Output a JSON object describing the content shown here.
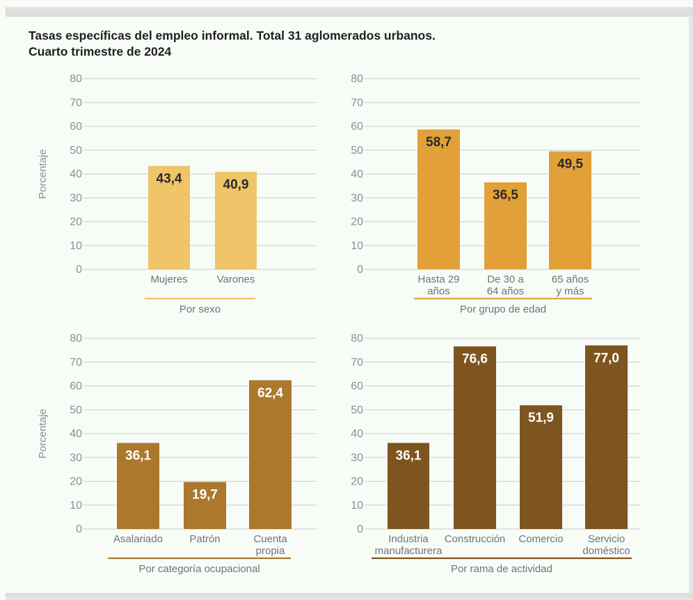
{
  "title_line1": "Tasas específicas del empleo informal. Total 31 aglomerados urbanos.",
  "title_line2": "Cuarto trimestre de 2024",
  "colors": {
    "sexo": "#f0c468",
    "edad": "#e2a138",
    "categoria": "#ab782c",
    "rama": "#7e5420",
    "grid": "#d4d6d4",
    "tick_text": "#8a8e96"
  },
  "chart_data": [
    {
      "type": "bar",
      "title": "Por sexo",
      "ylabel": "Porcentaje",
      "ylim": [
        0,
        80
      ],
      "yticks": [
        "0",
        "10",
        "20",
        "30",
        "40",
        "50",
        "60",
        "70",
        "80"
      ],
      "grid": true,
      "categories": [
        [
          "Mujeres"
        ],
        [
          "Varones"
        ]
      ],
      "values": [
        43.4,
        40.9
      ],
      "value_labels": [
        "43,4",
        "40,9"
      ],
      "value_label_color": "#2a2a2a"
    },
    {
      "type": "bar",
      "title": "Por grupo de edad",
      "ylabel": "",
      "ylim": [
        0,
        80
      ],
      "yticks": [
        "0",
        "10",
        "20",
        "30",
        "40",
        "50",
        "60",
        "70",
        "80"
      ],
      "grid": true,
      "categories": [
        [
          "Hasta 29",
          "años"
        ],
        [
          "De 30 a",
          "64 años"
        ],
        [
          "65 años",
          "y más"
        ]
      ],
      "values": [
        58.7,
        36.5,
        49.5
      ],
      "value_labels": [
        "58,7",
        "36,5",
        "49,5"
      ],
      "value_label_color": "#2a2a2a"
    },
    {
      "type": "bar",
      "title": "Por categoría ocupacional",
      "ylabel": "Porcentaje",
      "ylim": [
        0,
        80
      ],
      "yticks": [
        "0",
        "10",
        "20",
        "30",
        "40",
        "50",
        "60",
        "70",
        "80"
      ],
      "grid": true,
      "categories": [
        [
          "Asalariado"
        ],
        [
          "Patrón"
        ],
        [
          "Cuenta",
          "propia"
        ]
      ],
      "values": [
        36.1,
        19.7,
        62.4
      ],
      "value_labels": [
        "36,1",
        "19,7",
        "62,4"
      ],
      "value_label_color": "#ffffff"
    },
    {
      "type": "bar",
      "title": "Por rama de actividad",
      "ylabel": "",
      "ylim": [
        0,
        80
      ],
      "yticks": [
        "0",
        "10",
        "20",
        "30",
        "40",
        "50",
        "60",
        "70",
        "80"
      ],
      "grid": true,
      "categories": [
        [
          "Industria",
          "manufacturera"
        ],
        [
          "Construcción"
        ],
        [
          "Comercio"
        ],
        [
          "Servicio",
          "doméstico"
        ]
      ],
      "values": [
        36.1,
        76.6,
        51.9,
        77.0
      ],
      "value_labels": [
        "36,1",
        "76,6",
        "51,9",
        "77,0"
      ],
      "value_label_color": "#ffffff"
    }
  ]
}
